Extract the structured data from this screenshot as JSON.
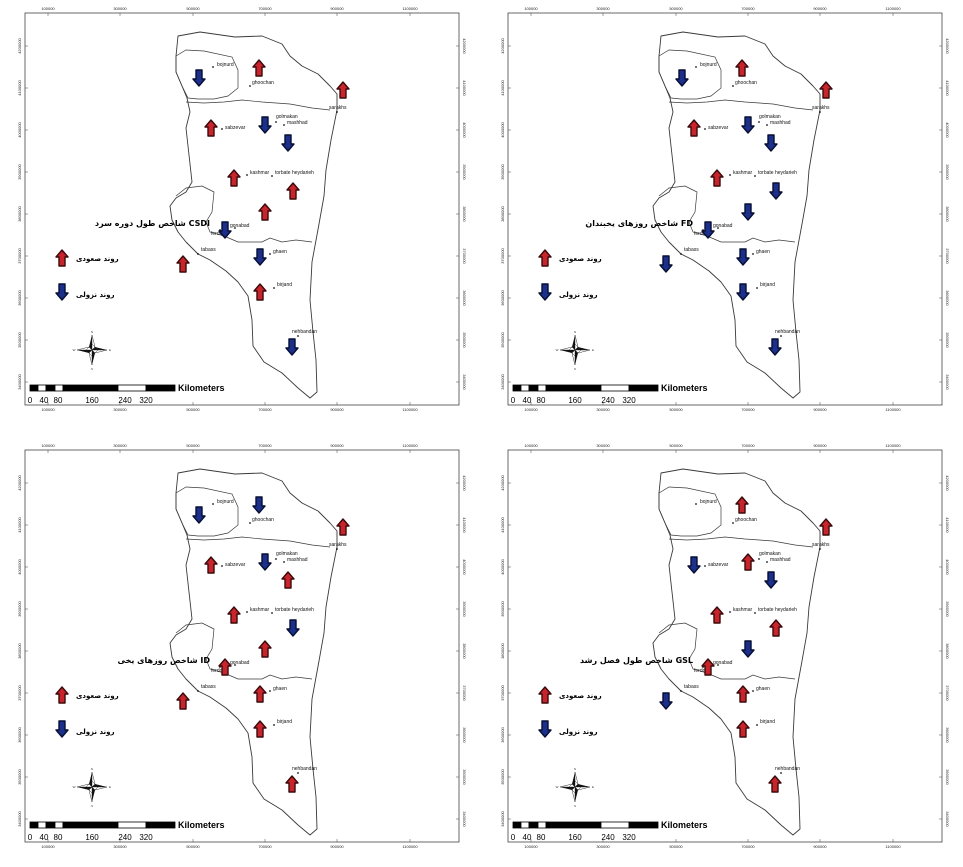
{
  "colors": {
    "up_fill": "#c8242b",
    "up_stroke": "#3a0a0c",
    "down_fill": "#1c2f8a",
    "down_stroke": "#070f33",
    "outline": "#3a3a3a"
  },
  "x_ticks": [
    "100000",
    "300000",
    "500000",
    "700000",
    "900000",
    "1100000"
  ],
  "y_ticks": [
    "4200000",
    "4100000",
    "4000000",
    "3900000",
    "3800000",
    "3700000",
    "3600000",
    "3500000",
    "3400000"
  ],
  "scale_bar": {
    "unit": "Kilometers",
    "labels": [
      "0",
      "40",
      "80",
      "160",
      "240",
      "320"
    ]
  },
  "compass": {
    "n": "N",
    "s": "S",
    "e": "E",
    "w": "W"
  },
  "cities": [
    "bojnurd",
    "ghoochan",
    "sarakhs",
    "golmakan",
    "mashhad",
    "sabzevar",
    "kashmar",
    "torbate heydarieh",
    "ferdous",
    "gonabad",
    "tabass",
    "ghaen",
    "birjand",
    "nehbandan"
  ],
  "maps": [
    {
      "index_code": "CSDI",
      "index_title": "شاخص  طول دوره سرد",
      "legend_up": "روند صعودی",
      "legend_down": "روند نزولی",
      "trends": {
        "bojnurd": "down",
        "ghoochan": "up",
        "sarakhs": "up",
        "sabzevar": "up",
        "golmakan": "down",
        "mashhad": "down",
        "kashmar": "up",
        "torbate heydarieh": "up",
        "gonabad": "up",
        "ferdous": "down",
        "tabass": "up",
        "ghaen": "down",
        "birjand": "up",
        "nehbandan": "down"
      }
    },
    {
      "index_code": "FD",
      "index_title": "شاخص روزهای یخبندان",
      "legend_up": "روند صعودی",
      "legend_down": "روند نزولی",
      "trends": {
        "bojnurd": "down",
        "ghoochan": "up",
        "sarakhs": "up",
        "sabzevar": "up",
        "golmakan": "down",
        "mashhad": "down",
        "kashmar": "up",
        "torbate heydarieh": "down",
        "gonabad": "down",
        "ferdous": "down",
        "tabass": "down",
        "ghaen": "down",
        "birjand": "down",
        "nehbandan": "down"
      }
    },
    {
      "index_code": "ID",
      "index_title": "شاخص روزهای یخی",
      "legend_up": "روند صعودی",
      "legend_down": "روند نزولی",
      "trends": {
        "bojnurd": "down",
        "ghoochan": "down",
        "sarakhs": "up",
        "sabzevar": "up",
        "golmakan": "down",
        "mashhad": "up",
        "kashmar": "up",
        "torbate heydarieh": "down",
        "gonabad": "up",
        "ferdous": "up",
        "tabass": "up",
        "ghaen": "up",
        "birjand": "up",
        "nehbandan": "up"
      }
    },
    {
      "index_code": "GSL",
      "index_title": "شاخص طول فصل رشد",
      "legend_up": "روند صعودی",
      "legend_down": "روند نزولی",
      "trends": {
        "ghoochan": "up",
        "sarakhs": "up",
        "sabzevar": "down",
        "golmakan": "up",
        "mashhad": "down",
        "kashmar": "up",
        "torbate heydarieh": "up",
        "gonabad": "down",
        "ferdous": "up",
        "tabass": "down",
        "ghaen": "up",
        "birjand": "up",
        "nehbandan": "up"
      }
    }
  ]
}
